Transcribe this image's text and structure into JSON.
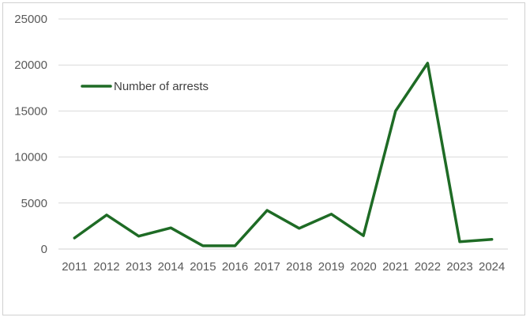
{
  "chart_data": {
    "type": "line",
    "title": "",
    "xlabel": "",
    "ylabel": "",
    "x": [
      "2011",
      "2012",
      "2013",
      "2014",
      "2015",
      "2016",
      "2017",
      "2018",
      "2019",
      "2020",
      "2021",
      "2022",
      "2023",
      "2024"
    ],
    "series": [
      {
        "name": "Number of arrests",
        "color": "#1e6b25",
        "values": [
          1200,
          3700,
          1400,
          2300,
          350,
          350,
          4200,
          2250,
          3800,
          1450,
          15000,
          20200,
          800,
          1050
        ]
      }
    ],
    "ylim": [
      0,
      25000
    ],
    "yticks": [
      0,
      5000,
      10000,
      15000,
      20000,
      25000
    ],
    "grid": true,
    "legend_position": "top-left"
  }
}
